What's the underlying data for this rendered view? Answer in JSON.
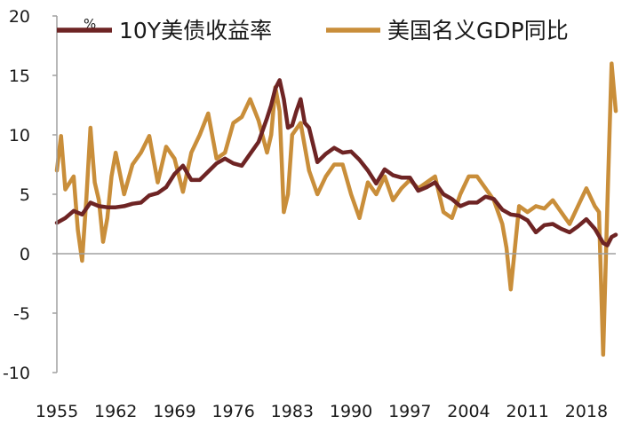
{
  "chart_data": {
    "type": "line",
    "unit": "%",
    "x_ticks": [
      "1955",
      "1962",
      "1969",
      "1976",
      "1983",
      "1990",
      "1997",
      "2004",
      "2011",
      "2018"
    ],
    "xlim": [
      1955,
      2021.5
    ],
    "ylim": [
      -10,
      20
    ],
    "y_ticks": [
      20,
      15,
      10,
      5,
      0,
      -5,
      -10
    ],
    "grid": false,
    "legend_position": "top",
    "series": [
      {
        "name": "10Y美债收益率",
        "color": "#6e2424",
        "x": [
          1955,
          1956,
          1957,
          1958,
          1959,
          1960,
          1961,
          1962,
          1963,
          1964,
          1965,
          1966,
          1967,
          1968,
          1969,
          1970,
          1971,
          1972,
          1973,
          1974,
          1975,
          1976,
          1977,
          1978,
          1979,
          1980,
          1980.5,
          1981,
          1981.5,
          1982,
          1982.5,
          1983,
          1983.5,
          1984,
          1984.5,
          1985,
          1986,
          1987,
          1988,
          1989,
          1990,
          1991,
          1992,
          1993,
          1994,
          1995,
          1996,
          1997,
          1998,
          1999,
          2000,
          2001,
          2002,
          2003,
          2004,
          2005,
          2006,
          2007,
          2008,
          2009,
          2010,
          2011,
          2012,
          2013,
          2014,
          2015,
          2016,
          2017,
          2018,
          2019,
          2020,
          2020.5,
          2021,
          2021.5
        ],
        "y": [
          2.6,
          3.0,
          3.6,
          3.3,
          4.3,
          4.0,
          3.9,
          3.9,
          4.0,
          4.2,
          4.3,
          4.9,
          5.1,
          5.6,
          6.7,
          7.4,
          6.2,
          6.2,
          6.9,
          7.6,
          8.0,
          7.6,
          7.4,
          8.4,
          9.4,
          11.4,
          12.5,
          13.9,
          14.6,
          13.0,
          10.6,
          10.8,
          12.0,
          13.0,
          11.0,
          10.6,
          7.7,
          8.4,
          8.9,
          8.5,
          8.6,
          7.9,
          7.0,
          5.9,
          7.1,
          6.6,
          6.4,
          6.4,
          5.3,
          5.6,
          6.0,
          5.0,
          4.6,
          4.0,
          4.3,
          4.3,
          4.8,
          4.6,
          3.7,
          3.3,
          3.2,
          2.8,
          1.8,
          2.4,
          2.5,
          2.1,
          1.8,
          2.3,
          2.9,
          2.1,
          0.9,
          0.7,
          1.4,
          1.6
        ]
      },
      {
        "name": "美国名义GDP同比",
        "color": "#c98e3a",
        "x": [
          1955,
          1955.5,
          1956,
          1957,
          1957.5,
          1958,
          1958.5,
          1959,
          1959.5,
          1960,
          1960.5,
          1961,
          1961.5,
          1962,
          1963,
          1964,
          1965,
          1966,
          1967,
          1968,
          1969,
          1970,
          1971,
          1972,
          1973,
          1974,
          1975,
          1976,
          1977,
          1978,
          1979,
          1980,
          1980.5,
          1981,
          1981.5,
          1982,
          1982.5,
          1983,
          1984,
          1985,
          1986,
          1987,
          1988,
          1989,
          1990,
          1991,
          1992,
          1993,
          1994,
          1995,
          1996,
          1997,
          1998,
          1999,
          2000,
          2001,
          2002,
          2003,
          2004,
          2005,
          2006,
          2007,
          2008,
          2008.5,
          2009,
          2009.5,
          2010,
          2011,
          2012,
          2013,
          2014,
          2015,
          2016,
          2017,
          2018,
          2019,
          2019.5,
          2020,
          2020.5,
          2021,
          2021.5
        ],
        "y": [
          7.0,
          9.9,
          5.4,
          6.5,
          2.0,
          -0.6,
          4.5,
          10.6,
          6.0,
          4.5,
          1.0,
          3.0,
          6.5,
          8.5,
          5.0,
          7.5,
          8.5,
          9.9,
          6.0,
          9.0,
          8.0,
          5.2,
          8.5,
          10.0,
          11.8,
          8.0,
          8.5,
          11.0,
          11.5,
          13.0,
          11.2,
          8.5,
          10.0,
          14.0,
          12.0,
          3.5,
          5.0,
          10.0,
          11.0,
          7.0,
          5.0,
          6.5,
          7.5,
          7.5,
          5.0,
          3.0,
          6.0,
          5.0,
          6.5,
          4.5,
          5.5,
          6.2,
          5.5,
          6.0,
          6.5,
          3.5,
          3.0,
          5.0,
          6.5,
          6.5,
          5.5,
          4.5,
          2.5,
          0.5,
          -3.0,
          0.5,
          4.0,
          3.5,
          4.0,
          3.8,
          4.5,
          3.5,
          2.5,
          4.0,
          5.5,
          4.0,
          3.5,
          -8.5,
          4.0,
          16.0,
          12.0
        ]
      }
    ]
  }
}
